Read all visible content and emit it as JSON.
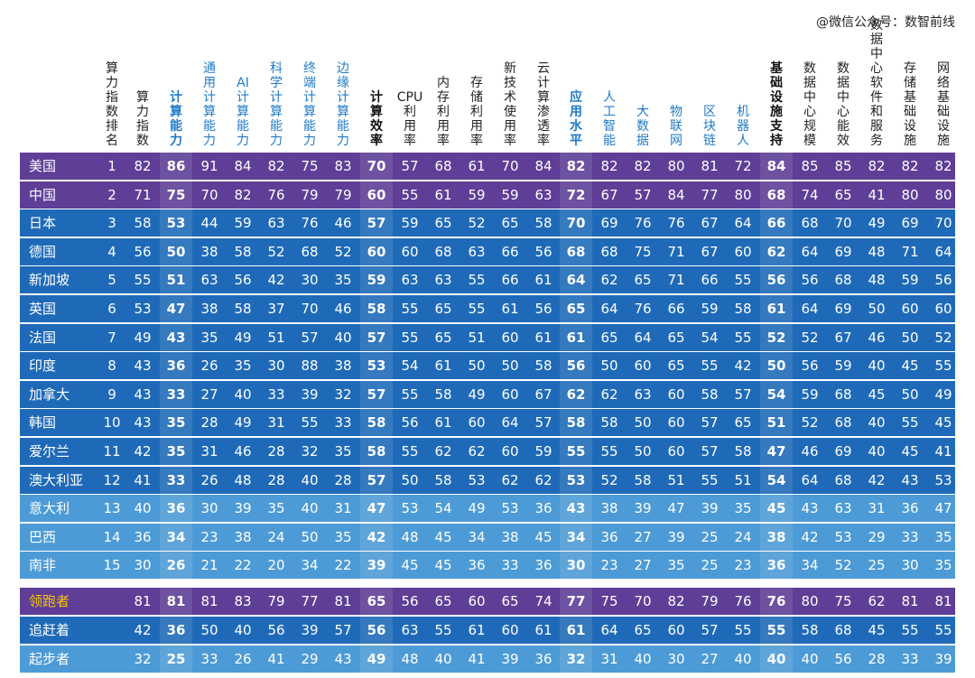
{
  "watermark": "@微信公众号：数智前线",
  "chart_data": {
    "type": "table",
    "columns": [
      "算力指数排名",
      "算力指数",
      "计算能力",
      "通用计算能力",
      "AI计算能力",
      "科学计算能力",
      "终端计算能力",
      "边缘计算能力",
      "计算效率",
      "CPU利用率",
      "内存利用率",
      "存储利用率",
      "新技术使用率",
      "云计算渗透率",
      "应用水平",
      "人工智能",
      "大数据",
      "物联网",
      "区块链",
      "机器人",
      "基础设施支持",
      "数据中心规模",
      "数据中心能效",
      "数据中心软件和服务",
      "存储基础设施",
      "网络基础设施"
    ],
    "rows": [
      {
        "name": "美国",
        "values": [
          "1",
          "82",
          "86",
          "91",
          "84",
          "82",
          "75",
          "83",
          "70",
          "57",
          "68",
          "61",
          "70",
          "84",
          "82",
          "82",
          "82",
          "80",
          "81",
          "72",
          "84",
          "85",
          "85",
          "82",
          "82",
          "82"
        ]
      },
      {
        "name": "中国",
        "values": [
          "2",
          "71",
          "75",
          "70",
          "82",
          "76",
          "79",
          "79",
          "60",
          "55",
          "61",
          "59",
          "59",
          "63",
          "72",
          "67",
          "57",
          "84",
          "77",
          "80",
          "68",
          "74",
          "65",
          "41",
          "80",
          "80"
        ]
      },
      {
        "name": "日本",
        "values": [
          "3",
          "58",
          "53",
          "44",
          "59",
          "63",
          "76",
          "46",
          "57",
          "59",
          "65",
          "52",
          "65",
          "58",
          "70",
          "69",
          "76",
          "76",
          "67",
          "64",
          "66",
          "68",
          "70",
          "49",
          "69",
          "70"
        ]
      },
      {
        "name": "德国",
        "values": [
          "4",
          "56",
          "50",
          "38",
          "58",
          "52",
          "68",
          "52",
          "60",
          "60",
          "68",
          "63",
          "66",
          "56",
          "68",
          "68",
          "75",
          "71",
          "67",
          "60",
          "62",
          "64",
          "69",
          "48",
          "71",
          "64"
        ]
      },
      {
        "name": "新加坡",
        "values": [
          "5",
          "55",
          "51",
          "63",
          "56",
          "42",
          "30",
          "35",
          "59",
          "63",
          "63",
          "55",
          "66",
          "61",
          "64",
          "62",
          "65",
          "71",
          "66",
          "55",
          "56",
          "56",
          "68",
          "48",
          "59",
          "56"
        ]
      },
      {
        "name": "英国",
        "values": [
          "6",
          "53",
          "47",
          "38",
          "58",
          "37",
          "70",
          "46",
          "58",
          "55",
          "65",
          "55",
          "61",
          "56",
          "65",
          "64",
          "76",
          "66",
          "59",
          "58",
          "61",
          "64",
          "69",
          "50",
          "60",
          "60"
        ]
      },
      {
        "name": "法国",
        "values": [
          "7",
          "49",
          "43",
          "35",
          "49",
          "51",
          "57",
          "40",
          "57",
          "55",
          "65",
          "51",
          "60",
          "61",
          "61",
          "65",
          "64",
          "65",
          "54",
          "55",
          "52",
          "52",
          "67",
          "46",
          "50",
          "52"
        ]
      },
      {
        "name": "印度",
        "values": [
          "8",
          "43",
          "36",
          "26",
          "35",
          "30",
          "88",
          "38",
          "53",
          "54",
          "61",
          "50",
          "50",
          "58",
          "56",
          "50",
          "60",
          "65",
          "55",
          "42",
          "50",
          "56",
          "59",
          "40",
          "45",
          "55"
        ]
      },
      {
        "name": "加拿大",
        "values": [
          "9",
          "43",
          "33",
          "27",
          "40",
          "33",
          "39",
          "32",
          "57",
          "55",
          "58",
          "49",
          "60",
          "67",
          "62",
          "62",
          "63",
          "60",
          "58",
          "57",
          "54",
          "59",
          "68",
          "45",
          "50",
          "49"
        ]
      },
      {
        "name": "韩国",
        "values": [
          "10",
          "43",
          "35",
          "28",
          "49",
          "31",
          "55",
          "33",
          "58",
          "56",
          "61",
          "60",
          "64",
          "57",
          "58",
          "58",
          "50",
          "60",
          "57",
          "65",
          "51",
          "52",
          "68",
          "40",
          "55",
          "45"
        ]
      },
      {
        "name": "爱尔兰",
        "values": [
          "11",
          "42",
          "35",
          "31",
          "46",
          "28",
          "32",
          "35",
          "58",
          "55",
          "62",
          "62",
          "60",
          "59",
          "55",
          "55",
          "50",
          "60",
          "57",
          "58",
          "47",
          "46",
          "69",
          "40",
          "45",
          "41"
        ]
      },
      {
        "name": "澳大利亚",
        "values": [
          "12",
          "41",
          "33",
          "26",
          "48",
          "28",
          "40",
          "28",
          "57",
          "50",
          "58",
          "53",
          "62",
          "62",
          "53",
          "52",
          "58",
          "51",
          "55",
          "51",
          "54",
          "64",
          "68",
          "42",
          "43",
          "53"
        ]
      },
      {
        "name": "意大利",
        "values": [
          "13",
          "40",
          "36",
          "30",
          "39",
          "35",
          "40",
          "31",
          "47",
          "53",
          "54",
          "49",
          "53",
          "36",
          "43",
          "38",
          "39",
          "47",
          "39",
          "35",
          "45",
          "43",
          "63",
          "31",
          "36",
          "47"
        ]
      },
      {
        "name": "巴西",
        "values": [
          "14",
          "36",
          "34",
          "23",
          "38",
          "24",
          "50",
          "35",
          "42",
          "48",
          "45",
          "34",
          "38",
          "45",
          "34",
          "36",
          "27",
          "39",
          "25",
          "24",
          "38",
          "42",
          "53",
          "29",
          "33",
          "35"
        ]
      },
      {
        "name": "南非",
        "values": [
          "15",
          "30",
          "26",
          "21",
          "22",
          "20",
          "34",
          "22",
          "39",
          "45",
          "45",
          "36",
          "33",
          "36",
          "30",
          "23",
          "27",
          "35",
          "25",
          "23",
          "36",
          "34",
          "52",
          "25",
          "30",
          "35"
        ]
      },
      {
        "name": "领跑者",
        "values": [
          "",
          "81",
          "81",
          "81",
          "83",
          "79",
          "77",
          "81",
          "65",
          "56",
          "65",
          "60",
          "65",
          "74",
          "77",
          "75",
          "70",
          "82",
          "79",
          "76",
          "76",
          "80",
          "75",
          "62",
          "81",
          "81"
        ]
      },
      {
        "name": "追赶着",
        "values": [
          "",
          "42",
          "36",
          "50",
          "40",
          "56",
          "39",
          "57",
          "56",
          "63",
          "55",
          "61",
          "60",
          "61",
          "61",
          "64",
          "65",
          "60",
          "57",
          "55",
          "55",
          "58",
          "68",
          "45",
          "55",
          "55"
        ]
      },
      {
        "name": "起步者",
        "values": [
          "",
          "32",
          "25",
          "33",
          "26",
          "41",
          "29",
          "43",
          "49",
          "48",
          "40",
          "41",
          "39",
          "36",
          "32",
          "31",
          "40",
          "30",
          "27",
          "40",
          "40",
          "40",
          "56",
          "28",
          "33",
          "39"
        ]
      }
    ],
    "bold_columns": [
      "计算能力",
      "计算效率",
      "应用水平",
      "基础设施支持"
    ],
    "blue_columns": [
      "计算能力",
      "通用计算能力",
      "AI计算能力",
      "科学计算能力",
      "终端计算能力",
      "边缘计算能力",
      "应用水平",
      "人工智能",
      "大数据",
      "物联网",
      "区块链",
      "机器人"
    ],
    "colors": {
      "top_rows": "#5e3e96",
      "mid_rows": "#1f6ab8",
      "low_rows": "#4d9bd6",
      "leader_row": "#5e3e96",
      "chaser_row": "#1f6ab8",
      "starter_row": "#4d9bd6",
      "leader_label": "#f5c400",
      "blue_header": "#1f7ac8"
    }
  }
}
